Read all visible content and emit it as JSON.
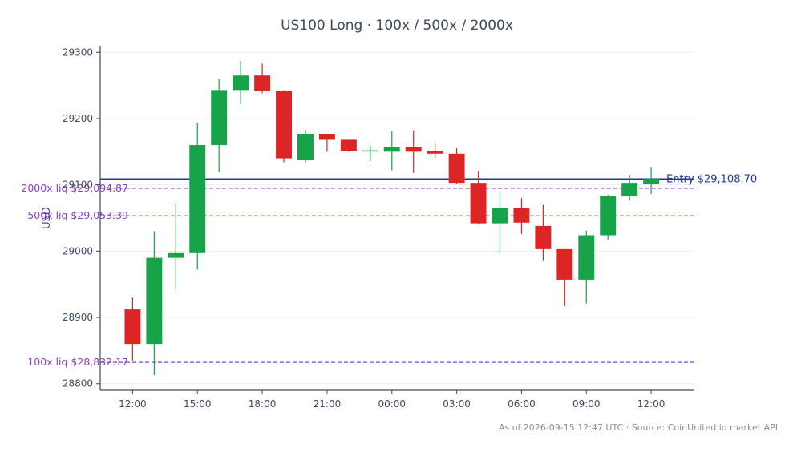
{
  "chart_data": {
    "type": "candlestick",
    "title": "US100 Long · 100x / 500x / 2000x",
    "ylabel": "USD",
    "xlabel": "",
    "ylim": [
      28790,
      29310
    ],
    "yticks": [
      28800,
      28900,
      29000,
      29100,
      29200,
      29300
    ],
    "xticks": [
      {
        "pos": 1.5,
        "label": "12:00"
      },
      {
        "pos": 4.5,
        "label": "15:00"
      },
      {
        "pos": 7.5,
        "label": "18:00"
      },
      {
        "pos": 10.5,
        "label": "21:00"
      },
      {
        "pos": 13.5,
        "label": "00:00"
      },
      {
        "pos": 16.5,
        "label": "03:00"
      },
      {
        "pos": 19.5,
        "label": "06:00"
      },
      {
        "pos": 22.5,
        "label": "09:00"
      },
      {
        "pos": 25.5,
        "label": "12:00"
      }
    ],
    "xlim": [
      0,
      27.5
    ],
    "candles": [
      {
        "x": 1.5,
        "open": 28912,
        "high": 28930,
        "low": 28835,
        "close": 28860
      },
      {
        "x": 2.5,
        "open": 28860,
        "high": 29030,
        "low": 28813,
        "close": 28990
      },
      {
        "x": 3.5,
        "open": 28990,
        "high": 29072,
        "low": 28942,
        "close": 28997
      },
      {
        "x": 4.5,
        "open": 28997,
        "high": 29194,
        "low": 28972,
        "close": 29160
      },
      {
        "x": 5.5,
        "open": 29160,
        "high": 29260,
        "low": 29120,
        "close": 29243
      },
      {
        "x": 6.5,
        "open": 29243,
        "high": 29287,
        "low": 29222,
        "close": 29265
      },
      {
        "x": 7.5,
        "open": 29265,
        "high": 29283,
        "low": 29238,
        "close": 29242
      },
      {
        "x": 8.5,
        "open": 29242,
        "high": 29243,
        "low": 29134,
        "close": 29140
      },
      {
        "x": 9.5,
        "open": 29137,
        "high": 29183,
        "low": 29134,
        "close": 29177
      },
      {
        "x": 10.5,
        "open": 29177,
        "high": 29177,
        "low": 29150,
        "close": 29168
      },
      {
        "x": 11.5,
        "open": 29168,
        "high": 29168,
        "low": 29150,
        "close": 29151
      },
      {
        "x": 12.5,
        "open": 29151,
        "high": 29159,
        "low": 29136,
        "close": 29152
      },
      {
        "x": 13.5,
        "open": 29150,
        "high": 29181,
        "low": 29122,
        "close": 29157
      },
      {
        "x": 14.5,
        "open": 29157,
        "high": 29182,
        "low": 29118,
        "close": 29150
      },
      {
        "x": 15.5,
        "open": 29151,
        "high": 29162,
        "low": 29140,
        "close": 29147
      },
      {
        "x": 16.5,
        "open": 29147,
        "high": 29155,
        "low": 29102,
        "close": 29103
      },
      {
        "x": 17.5,
        "open": 29103,
        "high": 29121,
        "low": 29040,
        "close": 29042
      },
      {
        "x": 18.5,
        "open": 29042,
        "high": 29090,
        "low": 28997,
        "close": 29065
      },
      {
        "x": 19.5,
        "open": 29065,
        "high": 29080,
        "low": 29026,
        "close": 29043
      },
      {
        "x": 20.5,
        "open": 29038,
        "high": 29070,
        "low": 28985,
        "close": 29003
      },
      {
        "x": 21.5,
        "open": 29003,
        "high": 29003,
        "low": 28917,
        "close": 28957
      },
      {
        "x": 22.5,
        "open": 28957,
        "high": 29031,
        "low": 28921,
        "close": 29024
      },
      {
        "x": 23.5,
        "open": 29024,
        "high": 29085,
        "low": 29017,
        "close": 29083
      },
      {
        "x": 24.5,
        "open": 29083,
        "high": 29115,
        "low": 29076,
        "close": 29103
      },
      {
        "x": 25.5,
        "open": 29102,
        "high": 29126,
        "low": 29086,
        "close": 29109
      }
    ],
    "entry": {
      "value": 29108.7,
      "label": "Entry $29,108.70",
      "color": "#1f3a93"
    },
    "liquidations": [
      {
        "value": 29094.87,
        "label": "2000x liq $29,094.87"
      },
      {
        "value": 29053.39,
        "label": "500x liq $29,053.39"
      },
      {
        "value": 28832.17,
        "label": "100x liq $28,832.17"
      }
    ],
    "colors": {
      "up": "#16a34a",
      "down": "#dc2626",
      "liq": "#8a3fc7",
      "grid": "#eeeeee",
      "axis": "#3d4a5c"
    },
    "grid": true
  },
  "footer": "As of 2026-09-15 12:47 UTC · Source: CoinUnited.io market API"
}
